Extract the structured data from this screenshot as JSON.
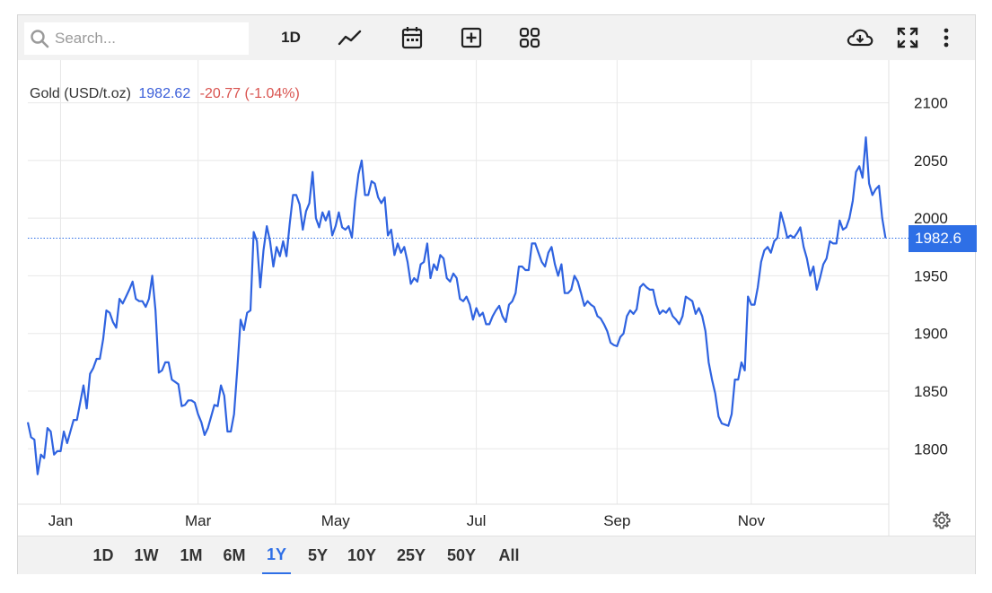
{
  "toolbar": {
    "search_placeholder": "Search...",
    "interval_label": "1D",
    "icons": [
      "search-icon",
      "line-chart-icon",
      "calendar-icon",
      "add-box-icon",
      "grid-icon",
      "cloud-download-icon",
      "fullscreen-icon",
      "more-vert-icon"
    ]
  },
  "legend": {
    "instrument": "Gold (USD/t.oz)",
    "price": "1982.62",
    "change": "-20.77 (-1.04%)",
    "price_color": "#3b5fd9",
    "change_color": "#d9534f"
  },
  "last_price_badge": "1982.6",
  "ranges": [
    {
      "label": "1D",
      "active": false
    },
    {
      "label": "1W",
      "active": false
    },
    {
      "label": "1M",
      "active": false
    },
    {
      "label": "6M",
      "active": false
    },
    {
      "label": "1Y",
      "active": true
    },
    {
      "label": "5Y",
      "active": false
    },
    {
      "label": "10Y",
      "active": false
    },
    {
      "label": "25Y",
      "active": false
    },
    {
      "label": "50Y",
      "active": false
    },
    {
      "label": "All",
      "active": false
    }
  ],
  "colors": {
    "line": "#2f63e0",
    "accent": "#2e6fe6",
    "grid": "#e8e8e8"
  },
  "chart_data": {
    "type": "line",
    "title": "Gold (USD/t.oz)",
    "xlabel": "",
    "ylabel": "",
    "x_tick_labels": [
      "Jan",
      "Mar",
      "May",
      "Jul",
      "Sep",
      "Nov"
    ],
    "y_ticks": [
      1800,
      1850,
      1900,
      1950,
      2000,
      2050,
      2100
    ],
    "ylim": [
      1752,
      2137
    ],
    "xlim": [
      0,
      263
    ],
    "x_tick_positions": [
      10,
      52,
      94,
      137,
      180,
      221
    ],
    "grid": true,
    "last_value": 1982.62,
    "series": [
      {
        "values": [
          1823,
          1810,
          1808,
          1778,
          1795,
          1792,
          1818,
          1815,
          1795,
          1798,
          1798,
          1815,
          1805,
          1815,
          1825,
          1825,
          1840,
          1855,
          1835,
          1865,
          1870,
          1878,
          1878,
          1895,
          1920,
          1918,
          1910,
          1905,
          1930,
          1926,
          1932,
          1938,
          1945,
          1930,
          1928,
          1928,
          1923,
          1930,
          1950,
          1920,
          1866,
          1868,
          1875,
          1875,
          1860,
          1858,
          1856,
          1837,
          1838,
          1842,
          1842,
          1840,
          1830,
          1823,
          1812,
          1818,
          1828,
          1838,
          1837,
          1855,
          1846,
          1815,
          1815,
          1830,
          1870,
          1912,
          1903,
          1918,
          1920,
          1988,
          1980,
          1940,
          1972,
          1993,
          1980,
          1958,
          1975,
          1967,
          1980,
          1967,
          1995,
          2020,
          2020,
          2012,
          1990,
          2006,
          2013,
          2040,
          2000,
          1992,
          2005,
          1998,
          2006,
          1985,
          1993,
          2005,
          1992,
          1990,
          1993,
          1983,
          2015,
          2038,
          2050,
          2020,
          2020,
          2032,
          2030,
          2018,
          2013,
          2018,
          1985,
          1990,
          1968,
          1978,
          1970,
          1975,
          1962,
          1943,
          1948,
          1945,
          1960,
          1962,
          1978,
          1948,
          1960,
          1955,
          1968,
          1965,
          1948,
          1945,
          1952,
          1948,
          1930,
          1928,
          1932,
          1925,
          1912,
          1922,
          1915,
          1918,
          1908,
          1908,
          1915,
          1920,
          1924,
          1915,
          1910,
          1925,
          1928,
          1935,
          1958,
          1958,
          1955,
          1955,
          1978,
          1978,
          1970,
          1962,
          1958,
          1970,
          1975,
          1960,
          1950,
          1960,
          1935,
          1935,
          1938,
          1950,
          1945,
          1935,
          1924,
          1928,
          1925,
          1923,
          1915,
          1913,
          1908,
          1902,
          1892,
          1890,
          1889,
          1897,
          1900,
          1915,
          1920,
          1917,
          1921,
          1940,
          1943,
          1940,
          1938,
          1938,
          1925,
          1917,
          1920,
          1918,
          1922,
          1915,
          1912,
          1908,
          1915,
          1932,
          1930,
          1928,
          1917,
          1922,
          1915,
          1902,
          1875,
          1860,
          1848,
          1828,
          1822,
          1821,
          1820,
          1830,
          1860,
          1860,
          1875,
          1868,
          1932,
          1925,
          1925,
          1940,
          1962,
          1972,
          1975,
          1970,
          1980,
          1983,
          2005,
          1995,
          1983,
          1985,
          1983,
          1987,
          1992,
          1975,
          1965,
          1950,
          1958,
          1938,
          1948,
          1960,
          1965,
          1980,
          1978,
          1978,
          1998,
          1990,
          1992,
          2000,
          2015,
          2040,
          2045,
          2035,
          2070,
          2030,
          2020,
          2025,
          2028,
          2000,
          1982.62
        ]
      }
    ]
  }
}
